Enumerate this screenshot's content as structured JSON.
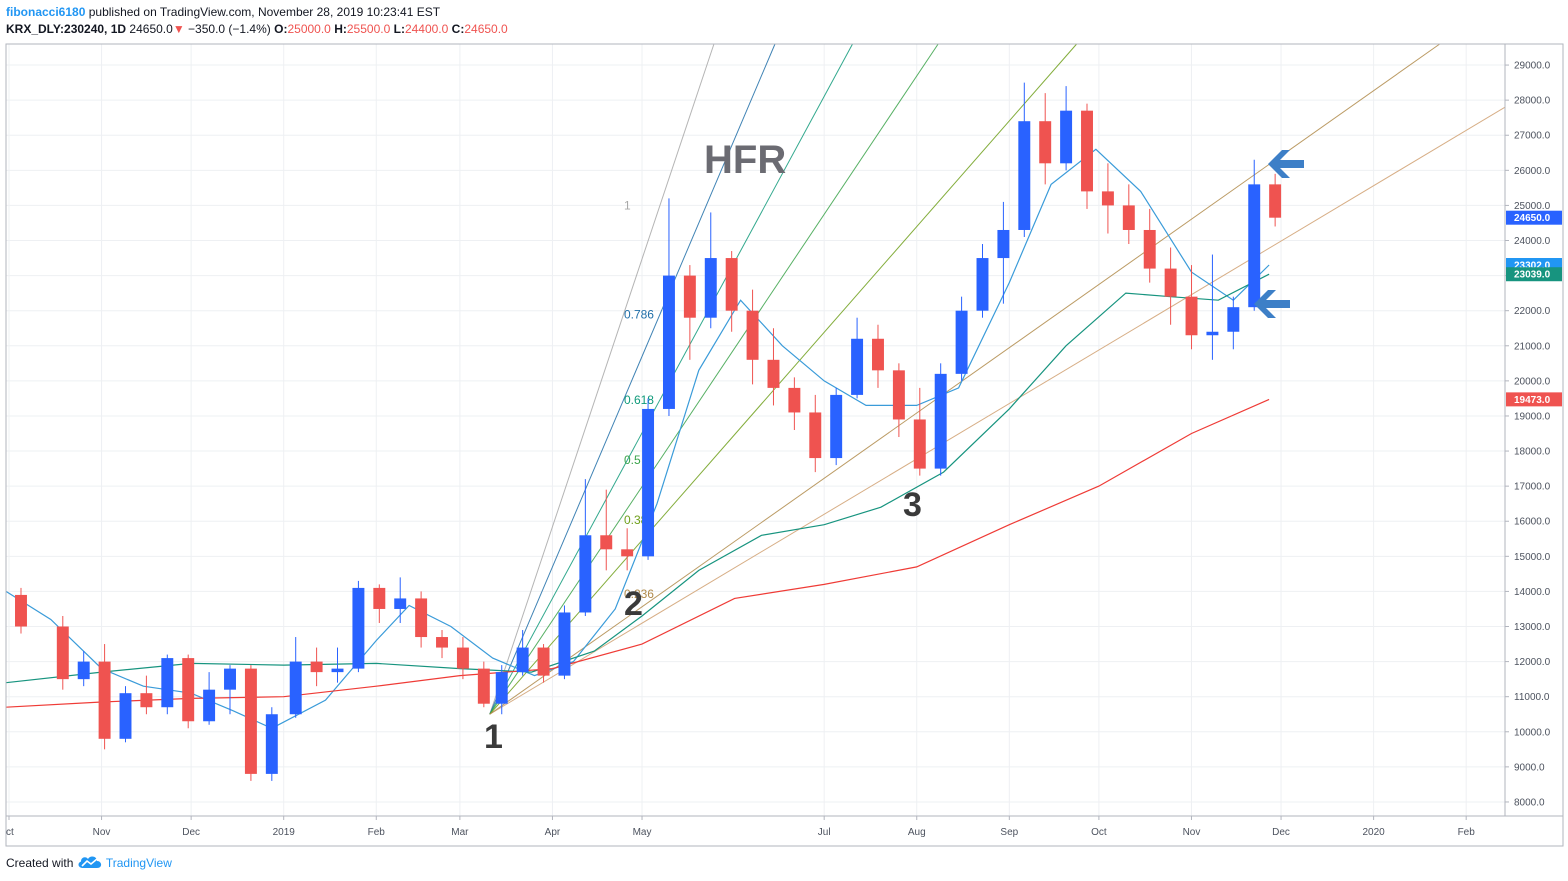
{
  "header": {
    "author": "fibonacci6180",
    "published": "published on TradingView.com, November 28, 2019 10:23:41 EST",
    "symbol": "KRX_DLY:230240, 1D",
    "last": "24650.0",
    "change": "−350.0 (−1.4%)",
    "o_label": "O:",
    "o_value": "25000.0",
    "h_label": "H:",
    "h_value": "25500.0",
    "l_label": "L:",
    "l_value": "24400.0",
    "c_label": "C:",
    "c_value": "24650.0"
  },
  "footer": {
    "created": "Created with",
    "brand": "TradingView",
    "logo_icon": "tradingview-cloud-icon"
  },
  "colors": {
    "up": "#26a69a",
    "up_drawn": "#2962ff",
    "down": "#ef5350",
    "ma_fast": "#3a9bd9",
    "ma_mid": "#17947f",
    "ma_slow": "#ef3b36",
    "trend": "#d7ae86",
    "arrow": "#3d7fc7"
  },
  "annotations": {
    "hfr": "HFR",
    "wave1": "1",
    "wave2": "2",
    "wave3": "3",
    "arrow_icons": [
      "arrow-left-icon",
      "arrow-left-icon"
    ]
  },
  "chart_data": {
    "type": "candlestick",
    "title": "",
    "xlabel": "",
    "ylabel": "",
    "y_ticks": [
      8000.0,
      9000.0,
      10000.0,
      11000.0,
      12000.0,
      13000.0,
      14000.0,
      15000.0,
      16000.0,
      17000.0,
      18000.0,
      19000.0,
      20000.0,
      21000.0,
      22000.0,
      23000.0,
      24000.0,
      25000.0,
      26000.0,
      27000.0,
      28000.0,
      29000.0
    ],
    "y_tick_labels": [
      "8000.0",
      "9000.0",
      "10000.0",
      "11000.0",
      "12000.0",
      "13000.0",
      "14000.0",
      "15000.0",
      "16000.0",
      "17000.0",
      "18000.0",
      "19000.0",
      "20000.0",
      "21000.0",
      "22000.0",
      "23000.0",
      "24000.0",
      "25000.0",
      "26000.0",
      "27000.0",
      "28000.0",
      "29000.0"
    ],
    "x_ticks": [
      {
        "label": "ct",
        "date": "2018-10-01"
      },
      {
        "label": "Nov",
        "date": "2018-11-01"
      },
      {
        "label": "Dec",
        "date": "2018-12-01"
      },
      {
        "label": "2019",
        "date": "2019-01-01"
      },
      {
        "label": "Feb",
        "date": "2019-02-01"
      },
      {
        "label": "Mar",
        "date": "2019-03-01"
      },
      {
        "label": "Apr",
        "date": "2019-04-01"
      },
      {
        "label": "May",
        "date": "2019-05-01"
      },
      {
        "label": "Jul",
        "date": "2019-07-01"
      },
      {
        "label": "Aug",
        "date": "2019-08-01"
      },
      {
        "label": "Sep",
        "date": "2019-09-01"
      },
      {
        "label": "Oct",
        "date": "2019-10-01"
      },
      {
        "label": "Nov",
        "date": "2019-11-01"
      },
      {
        "label": "Dec",
        "date": "2019-12-01"
      },
      {
        "label": "2020",
        "date": "2020-01-01"
      },
      {
        "label": "Feb",
        "date": "2020-02-01"
      }
    ],
    "x_range": [
      "2018-09-30",
      "2020-02-14"
    ],
    "y_range": [
      7600,
      29600
    ],
    "grid": true,
    "price_badges": [
      {
        "label": "24650.0",
        "value": 24650,
        "color": "#2962ff"
      },
      {
        "label": "23302.0",
        "value": 23302,
        "color": "#2196f3"
      },
      {
        "label": "23039.0",
        "value": 23039,
        "color": "#17947f"
      },
      {
        "label": "19473.0",
        "value": 19473,
        "color": "#ef5350"
      }
    ],
    "fan_levels": [
      {
        "label": "1",
        "color": "#a8a8a8"
      },
      {
        "label": "0.786",
        "color": "#1f6ea8"
      },
      {
        "label": "0.618",
        "color": "#0f9a7a"
      },
      {
        "label": "0.5",
        "color": "#3aa34a"
      },
      {
        "label": "0.382",
        "color": "#6e9f1a"
      },
      {
        "label": "0.236",
        "color": "#b08a4a"
      }
    ],
    "fan_origin": {
      "date": "2019-03-11",
      "value": 10500
    },
    "fan_reference_high": {
      "date": "2019-05-07",
      "value": 25000
    },
    "candles": [
      {
        "date": "2018-10-01",
        "o": 13900,
        "h": 14100,
        "l": 12800,
        "c": 13000
      },
      {
        "date": "2018-10-15",
        "o": 13000,
        "h": 13300,
        "l": 11200,
        "c": 11500
      },
      {
        "date": "2018-10-22",
        "o": 11500,
        "h": 12300,
        "l": 11300,
        "c": 12000
      },
      {
        "date": "2018-10-29",
        "o": 12000,
        "h": 12500,
        "l": 9500,
        "c": 9800
      },
      {
        "date": "2018-11-05",
        "o": 9800,
        "h": 11300,
        "l": 9700,
        "c": 11100
      },
      {
        "date": "2018-11-12",
        "o": 11100,
        "h": 11600,
        "l": 10500,
        "c": 10700
      },
      {
        "date": "2018-11-19",
        "o": 10700,
        "h": 12200,
        "l": 10500,
        "c": 12100
      },
      {
        "date": "2018-11-26",
        "o": 12100,
        "h": 12200,
        "l": 10100,
        "c": 10300
      },
      {
        "date": "2018-12-03",
        "o": 10300,
        "h": 11700,
        "l": 10200,
        "c": 11200
      },
      {
        "date": "2018-12-10",
        "o": 11200,
        "h": 11900,
        "l": 10500,
        "c": 11800
      },
      {
        "date": "2018-12-17",
        "o": 11800,
        "h": 11900,
        "l": 8600,
        "c": 8800
      },
      {
        "date": "2018-12-24",
        "o": 8800,
        "h": 10700,
        "l": 8600,
        "c": 10500
      },
      {
        "date": "2019-01-01",
        "o": 10500,
        "h": 12700,
        "l": 10400,
        "c": 12000
      },
      {
        "date": "2019-01-08",
        "o": 12000,
        "h": 12400,
        "l": 11300,
        "c": 11700
      },
      {
        "date": "2019-01-15",
        "o": 11700,
        "h": 12400,
        "l": 11400,
        "c": 11800
      },
      {
        "date": "2019-01-22",
        "o": 11800,
        "h": 14300,
        "l": 11700,
        "c": 14100
      },
      {
        "date": "2019-01-29",
        "o": 14100,
        "h": 14200,
        "l": 13100,
        "c": 13500
      },
      {
        "date": "2019-02-05",
        "o": 13500,
        "h": 14400,
        "l": 13100,
        "c": 13800
      },
      {
        "date": "2019-02-12",
        "o": 13800,
        "h": 14000,
        "l": 12400,
        "c": 12700
      },
      {
        "date": "2019-02-19",
        "o": 12700,
        "h": 12900,
        "l": 12100,
        "c": 12400
      },
      {
        "date": "2019-02-26",
        "o": 12400,
        "h": 12700,
        "l": 11500,
        "c": 11800
      },
      {
        "date": "2019-03-05",
        "o": 11800,
        "h": 12000,
        "l": 10700,
        "c": 10800
      },
      {
        "date": "2019-03-11",
        "o": 10800,
        "h": 11900,
        "l": 10500,
        "c": 11700
      },
      {
        "date": "2019-03-18",
        "o": 11700,
        "h": 12900,
        "l": 11600,
        "c": 12400
      },
      {
        "date": "2019-03-25",
        "o": 12400,
        "h": 12500,
        "l": 11400,
        "c": 11600
      },
      {
        "date": "2019-04-01",
        "o": 11600,
        "h": 13600,
        "l": 11500,
        "c": 13400
      },
      {
        "date": "2019-04-08",
        "o": 13400,
        "h": 17200,
        "l": 13300,
        "c": 15600
      },
      {
        "date": "2019-04-15",
        "o": 15600,
        "h": 16900,
        "l": 14600,
        "c": 15200
      },
      {
        "date": "2019-04-22",
        "o": 15200,
        "h": 15800,
        "l": 14600,
        "c": 15000
      },
      {
        "date": "2019-04-29",
        "o": 15000,
        "h": 19500,
        "l": 14900,
        "c": 19200
      },
      {
        "date": "2019-05-06",
        "o": 19200,
        "h": 25200,
        "l": 19000,
        "c": 23000
      },
      {
        "date": "2019-05-13",
        "o": 23000,
        "h": 23300,
        "l": 20600,
        "c": 21800
      },
      {
        "date": "2019-05-20",
        "o": 21800,
        "h": 24800,
        "l": 21500,
        "c": 23500
      },
      {
        "date": "2019-05-27",
        "o": 23500,
        "h": 23700,
        "l": 21400,
        "c": 22000
      },
      {
        "date": "2019-06-03",
        "o": 22000,
        "h": 22600,
        "l": 19900,
        "c": 20600
      },
      {
        "date": "2019-06-10",
        "o": 20600,
        "h": 21500,
        "l": 19300,
        "c": 19800
      },
      {
        "date": "2019-06-17",
        "o": 19800,
        "h": 20100,
        "l": 18600,
        "c": 19100
      },
      {
        "date": "2019-06-24",
        "o": 19100,
        "h": 19600,
        "l": 17400,
        "c": 17800
      },
      {
        "date": "2019-07-01",
        "o": 17800,
        "h": 19800,
        "l": 17600,
        "c": 19600
      },
      {
        "date": "2019-07-08",
        "o": 19600,
        "h": 21800,
        "l": 19500,
        "c": 21200
      },
      {
        "date": "2019-07-15",
        "o": 21200,
        "h": 21600,
        "l": 19800,
        "c": 20300
      },
      {
        "date": "2019-07-22",
        "o": 20300,
        "h": 20500,
        "l": 18400,
        "c": 18900
      },
      {
        "date": "2019-07-29",
        "o": 18900,
        "h": 19800,
        "l": 17300,
        "c": 17500
      },
      {
        "date": "2019-08-05",
        "o": 17500,
        "h": 20500,
        "l": 17300,
        "c": 20200
      },
      {
        "date": "2019-08-12",
        "o": 20200,
        "h": 22400,
        "l": 20000,
        "c": 22000
      },
      {
        "date": "2019-08-19",
        "o": 22000,
        "h": 23900,
        "l": 21800,
        "c": 23500
      },
      {
        "date": "2019-08-26",
        "o": 23500,
        "h": 25100,
        "l": 22200,
        "c": 24300
      },
      {
        "date": "2019-09-02",
        "o": 24300,
        "h": 28500,
        "l": 24100,
        "c": 27400
      },
      {
        "date": "2019-09-09",
        "o": 27400,
        "h": 28200,
        "l": 25600,
        "c": 26200
      },
      {
        "date": "2019-09-16",
        "o": 26200,
        "h": 28400,
        "l": 26000,
        "c": 27700
      },
      {
        "date": "2019-09-23",
        "o": 27700,
        "h": 27900,
        "l": 24900,
        "c": 25400
      },
      {
        "date": "2019-09-30",
        "o": 25400,
        "h": 26200,
        "l": 24200,
        "c": 25000
      },
      {
        "date": "2019-10-07",
        "o": 25000,
        "h": 25600,
        "l": 23900,
        "c": 24300
      },
      {
        "date": "2019-10-14",
        "o": 24300,
        "h": 24900,
        "l": 22800,
        "c": 23200
      },
      {
        "date": "2019-10-21",
        "o": 23200,
        "h": 23800,
        "l": 21600,
        "c": 22400
      },
      {
        "date": "2019-10-28",
        "o": 22400,
        "h": 23300,
        "l": 20900,
        "c": 21300
      },
      {
        "date": "2019-11-04",
        "o": 21300,
        "h": 23600,
        "l": 20600,
        "c": 21400
      },
      {
        "date": "2019-11-11",
        "o": 21400,
        "h": 22400,
        "l": 20900,
        "c": 22100
      },
      {
        "date": "2019-11-18",
        "o": 22100,
        "h": 26300,
        "l": 22000,
        "c": 25600
      },
      {
        "date": "2019-11-25",
        "o": 25600,
        "h": 25900,
        "l": 24400,
        "c": 24650
      }
    ],
    "series": [
      {
        "name": "",
        "color": "#3a9bd9",
        "points": [
          {
            "date": "2018-09-30",
            "value": 14000
          },
          {
            "date": "2018-10-15",
            "value": 13200
          },
          {
            "date": "2018-11-01",
            "value": 11800
          },
          {
            "date": "2018-11-15",
            "value": 11300
          },
          {
            "date": "2018-12-01",
            "value": 11100
          },
          {
            "date": "2018-12-15",
            "value": 10600
          },
          {
            "date": "2018-12-28",
            "value": 10100
          },
          {
            "date": "2019-01-15",
            "value": 10900
          },
          {
            "date": "2019-02-01",
            "value": 12600
          },
          {
            "date": "2019-02-12",
            "value": 13600
          },
          {
            "date": "2019-02-26",
            "value": 13000
          },
          {
            "date": "2019-03-12",
            "value": 12100
          },
          {
            "date": "2019-03-26",
            "value": 11600
          },
          {
            "date": "2019-04-08",
            "value": 12000
          },
          {
            "date": "2019-04-22",
            "value": 13500
          },
          {
            "date": "2019-05-06",
            "value": 16500
          },
          {
            "date": "2019-05-20",
            "value": 20300
          },
          {
            "date": "2019-06-03",
            "value": 22300
          },
          {
            "date": "2019-06-17",
            "value": 21000
          },
          {
            "date": "2019-07-01",
            "value": 20000
          },
          {
            "date": "2019-07-15",
            "value": 19300
          },
          {
            "date": "2019-08-01",
            "value": 19300
          },
          {
            "date": "2019-08-15",
            "value": 19800
          },
          {
            "date": "2019-09-01",
            "value": 22800
          },
          {
            "date": "2019-09-15",
            "value": 25600
          },
          {
            "date": "2019-09-30",
            "value": 26600
          },
          {
            "date": "2019-10-15",
            "value": 25400
          },
          {
            "date": "2019-11-01",
            "value": 23100
          },
          {
            "date": "2019-11-15",
            "value": 22300
          },
          {
            "date": "2019-11-27",
            "value": 23302
          }
        ]
      },
      {
        "name": "",
        "color": "#17947f",
        "points": [
          {
            "date": "2018-09-30",
            "value": 11400
          },
          {
            "date": "2018-11-01",
            "value": 11700
          },
          {
            "date": "2018-12-01",
            "value": 11950
          },
          {
            "date": "2019-01-01",
            "value": 11900
          },
          {
            "date": "2019-02-01",
            "value": 11950
          },
          {
            "date": "2019-03-01",
            "value": 11800
          },
          {
            "date": "2019-03-25",
            "value": 11700
          },
          {
            "date": "2019-04-15",
            "value": 12300
          },
          {
            "date": "2019-05-01",
            "value": 13300
          },
          {
            "date": "2019-05-20",
            "value": 14600
          },
          {
            "date": "2019-06-10",
            "value": 15600
          },
          {
            "date": "2019-07-01",
            "value": 15900
          },
          {
            "date": "2019-07-20",
            "value": 16400
          },
          {
            "date": "2019-08-10",
            "value": 17400
          },
          {
            "date": "2019-09-01",
            "value": 19200
          },
          {
            "date": "2019-09-20",
            "value": 21000
          },
          {
            "date": "2019-10-10",
            "value": 22500
          },
          {
            "date": "2019-10-25",
            "value": 22400
          },
          {
            "date": "2019-11-10",
            "value": 22300
          },
          {
            "date": "2019-11-27",
            "value": 23039
          }
        ]
      },
      {
        "name": "",
        "color": "#ef3b36",
        "points": [
          {
            "date": "2018-09-30",
            "value": 10700
          },
          {
            "date": "2018-11-01",
            "value": 10850
          },
          {
            "date": "2018-12-01",
            "value": 10950
          },
          {
            "date": "2019-01-01",
            "value": 11000
          },
          {
            "date": "2019-02-01",
            "value": 11300
          },
          {
            "date": "2019-03-01",
            "value": 11600
          },
          {
            "date": "2019-04-01",
            "value": 11800
          },
          {
            "date": "2019-05-01",
            "value": 12500
          },
          {
            "date": "2019-06-01",
            "value": 13800
          },
          {
            "date": "2019-07-01",
            "value": 14200
          },
          {
            "date": "2019-08-01",
            "value": 14700
          },
          {
            "date": "2019-09-01",
            "value": 15900
          },
          {
            "date": "2019-10-01",
            "value": 17000
          },
          {
            "date": "2019-11-01",
            "value": 18500
          },
          {
            "date": "2019-11-27",
            "value": 19473
          }
        ]
      }
    ],
    "trendline": {
      "from": {
        "date": "2019-03-11",
        "value": 10500
      },
      "to": {
        "date": "2020-02-14",
        "value": 27800
      }
    }
  }
}
